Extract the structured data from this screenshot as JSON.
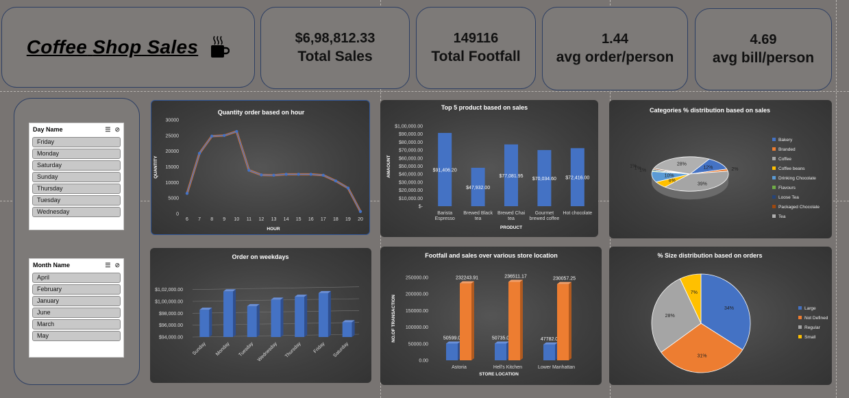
{
  "header": {
    "title_words": [
      "Coffee",
      "Shop",
      "Sales"
    ],
    "icon": "coffee-cup-icon"
  },
  "kpis": [
    {
      "value": "$6,98,812.33",
      "label": "Total Sales"
    },
    {
      "value": "149116",
      "label": "Total Footfall"
    },
    {
      "value": "1.44",
      "label": "avg order/person"
    },
    {
      "value": "4.69",
      "label": "avg bill/person"
    }
  ],
  "slicers": {
    "day": {
      "title": "Day Name",
      "items": [
        "Friday",
        "Monday",
        "Saturday",
        "Sunday",
        "Thursday",
        "Tuesday",
        "Wednesday"
      ]
    },
    "month": {
      "title": "Month Name",
      "items": [
        "April",
        "February",
        "January",
        "June",
        "March",
        "May"
      ]
    }
  },
  "colors": {
    "blue": "#4472c4",
    "orange": "#ed7d31",
    "gray": "#a5a5a5",
    "yellow": "#ffc000",
    "lightblue": "#5b9bd5",
    "green": "#70ad47",
    "navy": "#264478",
    "darkorange": "#9e480e",
    "silver": "#b0b0b0"
  },
  "chart_data": [
    {
      "id": "hour",
      "type": "line",
      "title": "Quantity order based on hour",
      "xlabel": "HOUR",
      "ylabel": "QUANTITY",
      "x": [
        6,
        7,
        8,
        9,
        10,
        11,
        12,
        13,
        14,
        15,
        16,
        17,
        18,
        19,
        20
      ],
      "values": [
        6500,
        19300,
        24800,
        25000,
        26300,
        13900,
        12400,
        12300,
        12600,
        12600,
        12600,
        12300,
        10500,
        8200,
        700
      ],
      "ylim": [
        0,
        30000
      ],
      "yticks": [
        "0",
        "5000",
        "10000",
        "15000",
        "20000",
        "25000",
        "30000"
      ]
    },
    {
      "id": "top5",
      "type": "bar",
      "title": "Top 5 product based on sales",
      "xlabel": "PRODUCT",
      "ylabel": "AMAOUNT",
      "categories": [
        [
          "Barista",
          "Espresso"
        ],
        [
          "Brewed Black",
          "tea"
        ],
        [
          "Brewed Chai",
          "tea"
        ],
        [
          "Gourmet",
          "brewed coffee"
        ],
        [
          "Hot chocolate"
        ]
      ],
      "values": [
        91406.2,
        47932,
        77081.95,
        70034.6,
        72416
      ],
      "labels": [
        "$91,406.20",
        "$47,932.00",
        "$77,081.95",
        "$70,034.60",
        "$72,416.00"
      ],
      "ylim": [
        0,
        100000
      ],
      "yticks": [
        "$-",
        "$10,000.00",
        "$20,000.00",
        "$30,000.00",
        "$40,000.00",
        "$50,000.00",
        "$60,000.00",
        "$70,000.00",
        "$80,000.00",
        "$90,000.00",
        "$1,00,000.00"
      ]
    },
    {
      "id": "categories",
      "type": "pie",
      "title": "Categories % distribution based on sales",
      "legend": [
        "Bakery",
        "Branded",
        "Coffee",
        "Coffee beans",
        "Drinking Chocolate",
        "Flavours",
        "Loose Tea",
        "Packaged Chocolate",
        "Tea"
      ],
      "values": [
        12,
        2,
        39,
        6,
        10,
        1,
        1,
        1,
        28
      ],
      "labels": [
        "12%",
        "2%",
        "39%",
        "6%",
        "10%",
        "1%",
        "1%",
        "1%",
        "28%"
      ]
    },
    {
      "id": "weekdays",
      "type": "bar",
      "title": "Order on weekdays",
      "categories": [
        "Sunday",
        "Monday",
        "Tuesday",
        "Wednesday",
        "Thursday",
        "Friday",
        "Saturday"
      ],
      "values": [
        98600,
        101700,
        99200,
        100300,
        100800,
        101400,
        96500
      ],
      "ylim": [
        94000,
        103000
      ],
      "yticks": [
        "$94,000.00",
        "$96,000.00",
        "$98,000.00",
        "$1,00,000.00",
        "$1,02,000.00"
      ]
    },
    {
      "id": "stores",
      "type": "bar",
      "title": "Footfall and sales over various store location",
      "xlabel": "STORE LOCATION",
      "ylabel": "NO.OF TRANSACTION",
      "categories": [
        "Astoria",
        "Hell's Kitchen",
        "Lower Manhattan"
      ],
      "series": [
        {
          "values": [
            50599,
            50735,
            47782
          ],
          "labels": [
            "50599.00",
            "50735.00",
            "47782.00"
          ]
        },
        {
          "values": [
            232243.91,
            236511.17,
            230057.25
          ],
          "labels": [
            "232243.91",
            "236511.17",
            "230057.25"
          ]
        }
      ],
      "ylim": [
        0,
        250000
      ],
      "yticks": [
        "0.00",
        "50000.00",
        "100000.00",
        "150000.00",
        "200000.00",
        "250000.00"
      ]
    },
    {
      "id": "sizes",
      "type": "pie",
      "title": "% Size distribution based on orders",
      "legend": [
        "Large",
        "Not Defined",
        "Regular",
        "Small"
      ],
      "values": [
        34,
        31,
        28,
        7
      ],
      "labels": [
        "34%",
        "31%",
        "28%",
        "7%"
      ]
    }
  ]
}
